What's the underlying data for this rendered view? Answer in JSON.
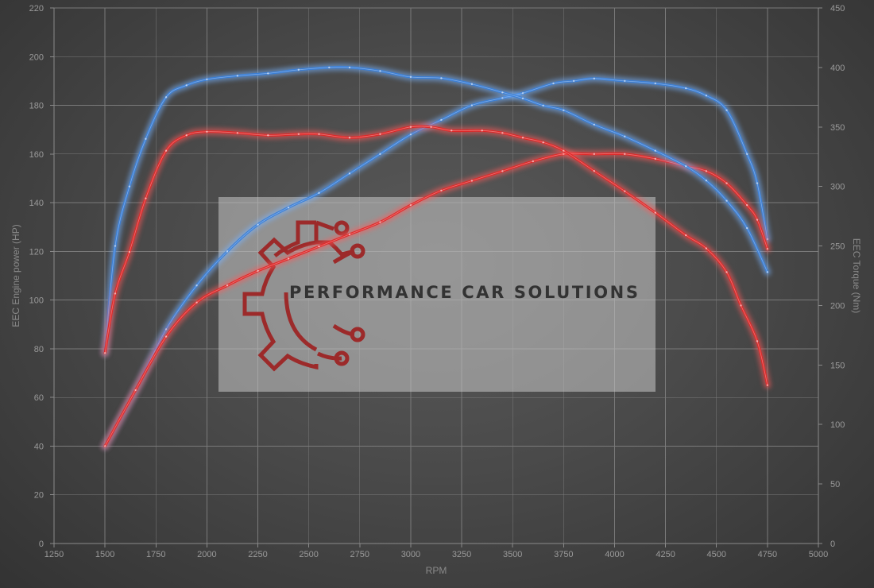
{
  "chart_data": {
    "type": "line",
    "title": "",
    "xlabel": "RPM",
    "ylabel_left": "EEC Engine power (HP)",
    "ylabel_right": "EEC Torque (Nm)",
    "xlim": [
      1250,
      5000
    ],
    "ylim_left": [
      0,
      220
    ],
    "ylim_right": [
      0,
      450
    ],
    "x_ticks": [
      1250,
      1500,
      1750,
      2000,
      2250,
      2500,
      2750,
      3000,
      3250,
      3500,
      3750,
      4000,
      4250,
      4500,
      4750,
      5000
    ],
    "y_ticks_left": [
      0,
      20,
      40,
      60,
      80,
      100,
      120,
      140,
      160,
      180,
      200,
      220
    ],
    "y_ticks_right": [
      0,
      50,
      100,
      150,
      200,
      250,
      300,
      350,
      400,
      450
    ],
    "grid": true,
    "series": [
      {
        "axis": "left",
        "color": "#3a7fd8",
        "glow": "#78b4ff",
        "points": [
          [
            1500,
            40
          ],
          [
            1650,
            63
          ],
          [
            1800,
            88
          ],
          [
            1950,
            106
          ],
          [
            2100,
            120
          ],
          [
            2250,
            131
          ],
          [
            2400,
            138
          ],
          [
            2550,
            144
          ],
          [
            2700,
            152
          ],
          [
            2850,
            160
          ],
          [
            3000,
            168
          ],
          [
            3150,
            174
          ],
          [
            3300,
            180
          ],
          [
            3450,
            183
          ],
          [
            3550,
            185
          ],
          [
            3700,
            189
          ],
          [
            3800,
            190
          ],
          [
            3900,
            191
          ],
          [
            4050,
            190
          ],
          [
            4200,
            189
          ],
          [
            4350,
            187
          ],
          [
            4450,
            184
          ],
          [
            4550,
            178
          ],
          [
            4650,
            160
          ],
          [
            4700,
            148
          ],
          [
            4750,
            125
          ]
        ]
      },
      {
        "axis": "left",
        "color": "#e02828",
        "glow": "#ff5a5a",
        "points": [
          [
            1500,
            40
          ],
          [
            1650,
            63
          ],
          [
            1800,
            85
          ],
          [
            1950,
            99
          ],
          [
            2100,
            106
          ],
          [
            2250,
            112
          ],
          [
            2400,
            117
          ],
          [
            2550,
            122
          ],
          [
            2700,
            127
          ],
          [
            2850,
            132
          ],
          [
            3000,
            139
          ],
          [
            3150,
            145
          ],
          [
            3300,
            149
          ],
          [
            3450,
            153
          ],
          [
            3600,
            157
          ],
          [
            3750,
            160
          ],
          [
            3900,
            160
          ],
          [
            4050,
            160
          ],
          [
            4200,
            158
          ],
          [
            4350,
            155
          ],
          [
            4450,
            153
          ],
          [
            4550,
            148
          ],
          [
            4650,
            139
          ],
          [
            4700,
            133
          ],
          [
            4750,
            121
          ]
        ]
      },
      {
        "axis": "right",
        "color": "#3a7fd8",
        "glow": "#78b4ff",
        "points": [
          [
            1500,
            160
          ],
          [
            1550,
            250
          ],
          [
            1620,
            300
          ],
          [
            1700,
            340
          ],
          [
            1800,
            375
          ],
          [
            1900,
            385
          ],
          [
            2000,
            390
          ],
          [
            2150,
            393
          ],
          [
            2300,
            395
          ],
          [
            2450,
            398
          ],
          [
            2600,
            400
          ],
          [
            2700,
            400
          ],
          [
            2850,
            397
          ],
          [
            3000,
            392
          ],
          [
            3150,
            391
          ],
          [
            3300,
            386
          ],
          [
            3450,
            379
          ],
          [
            3550,
            374
          ],
          [
            3650,
            368
          ],
          [
            3750,
            364
          ],
          [
            3900,
            352
          ],
          [
            4050,
            342
          ],
          [
            4200,
            330
          ],
          [
            4350,
            317
          ],
          [
            4450,
            305
          ],
          [
            4550,
            288
          ],
          [
            4650,
            265
          ],
          [
            4750,
            228
          ]
        ]
      },
      {
        "axis": "right",
        "color": "#e02828",
        "glow": "#ff5a5a",
        "points": [
          [
            1500,
            160
          ],
          [
            1550,
            210
          ],
          [
            1620,
            245
          ],
          [
            1700,
            290
          ],
          [
            1800,
            330
          ],
          [
            1900,
            343
          ],
          [
            2000,
            346
          ],
          [
            2150,
            345
          ],
          [
            2300,
            343
          ],
          [
            2450,
            344
          ],
          [
            2550,
            344
          ],
          [
            2700,
            341
          ],
          [
            2850,
            344
          ],
          [
            3000,
            350
          ],
          [
            3100,
            350
          ],
          [
            3200,
            347
          ],
          [
            3350,
            347
          ],
          [
            3450,
            345
          ],
          [
            3550,
            341
          ],
          [
            3650,
            337
          ],
          [
            3750,
            330
          ],
          [
            3900,
            313
          ],
          [
            4050,
            296
          ],
          [
            4200,
            278
          ],
          [
            4350,
            259
          ],
          [
            4450,
            248
          ],
          [
            4550,
            228
          ],
          [
            4620,
            200
          ],
          [
            4700,
            170
          ],
          [
            4750,
            133
          ]
        ]
      }
    ]
  },
  "watermark": {
    "text": "PERFORMANCE CAR SOLUTIONS",
    "logo_color": "#9c2a2a"
  }
}
